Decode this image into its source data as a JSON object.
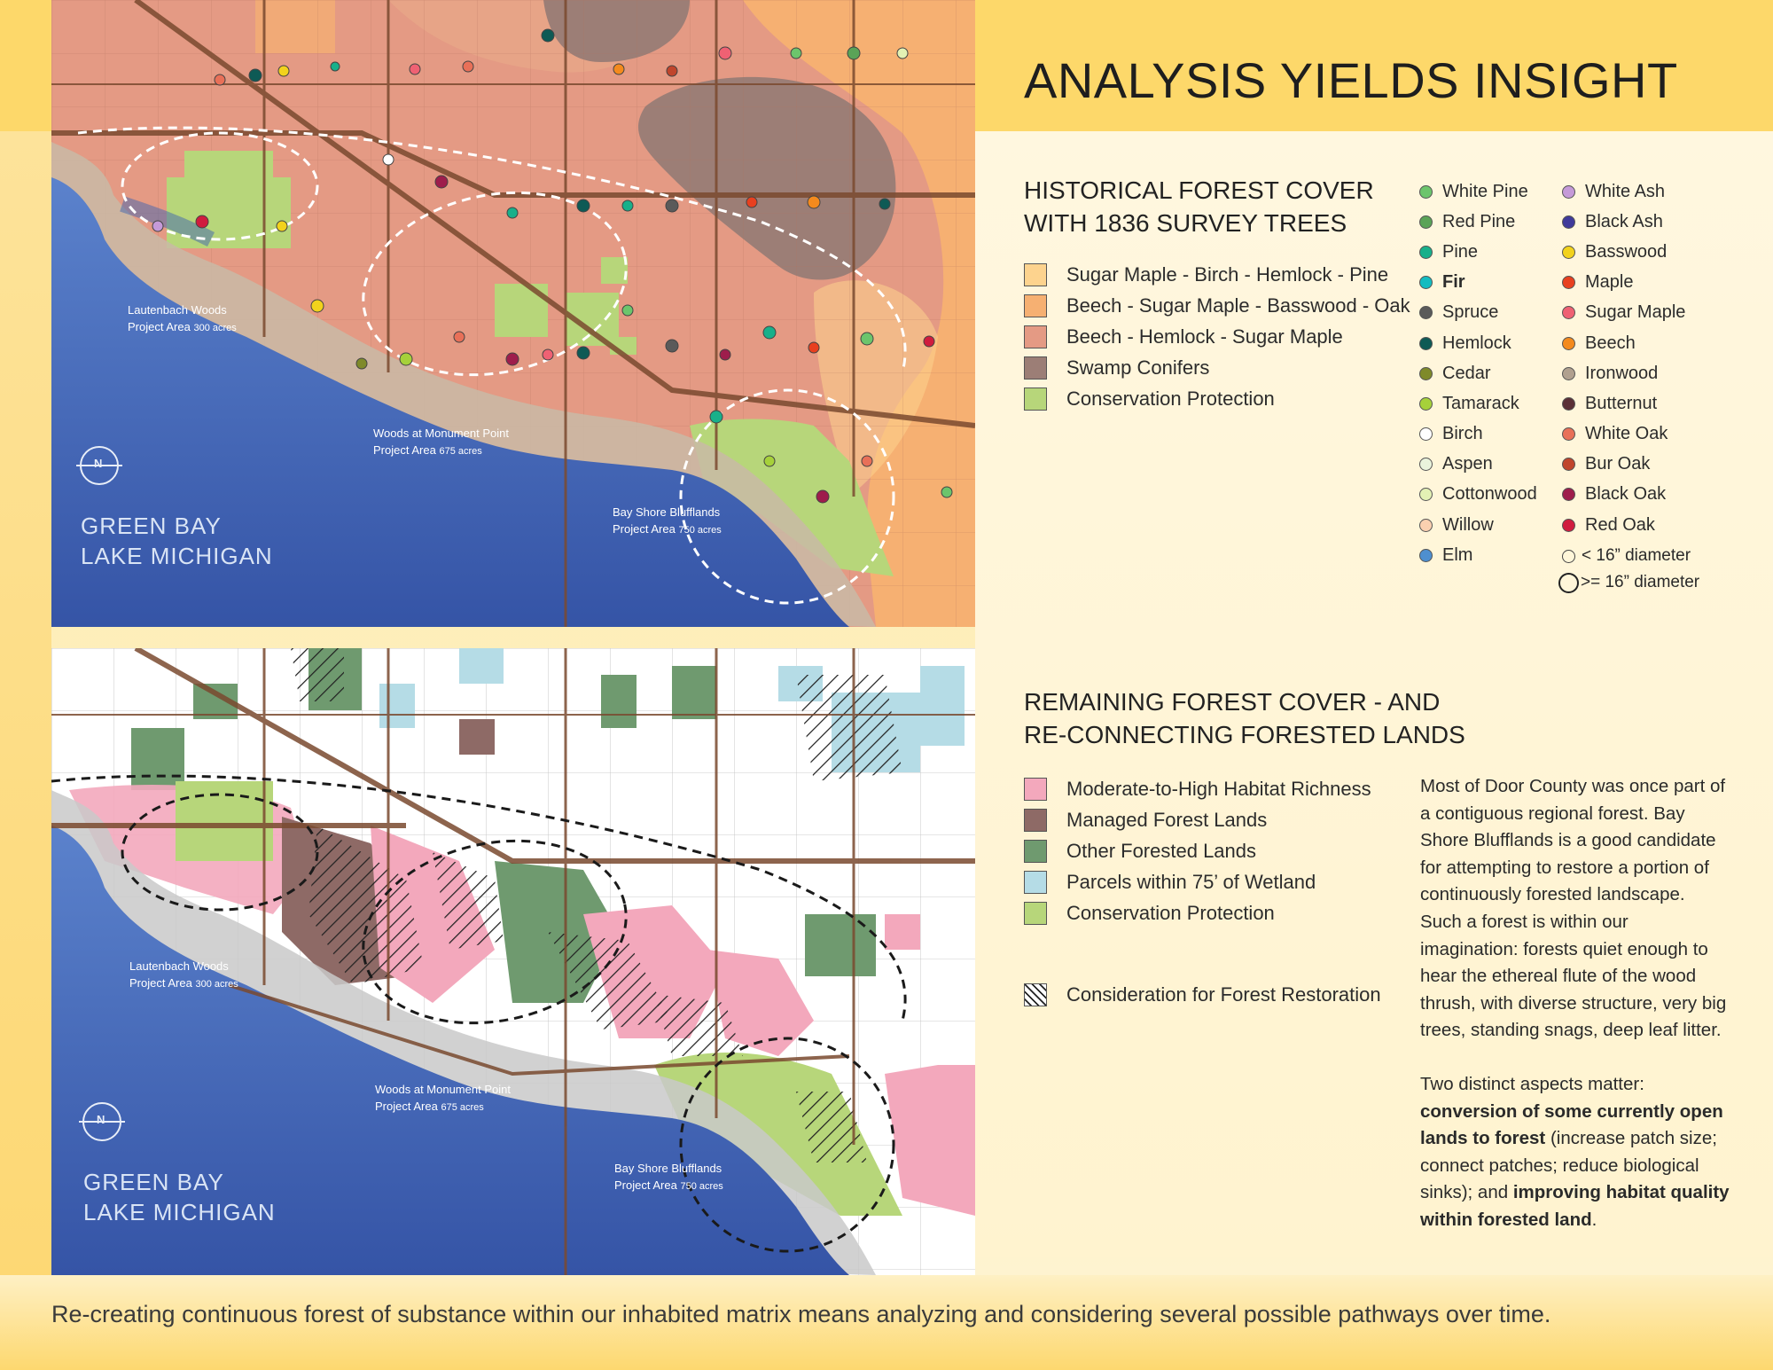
{
  "title": "ANALYSIS YIELDS INSIGHT",
  "section1": {
    "heading_line1": "HISTORICAL FOREST COVER",
    "heading_line2": "WITH 1836 SURVEY TREES",
    "legend": [
      {
        "label": "Sugar Maple - Birch - Hemlock - Pine",
        "color": "#fdd38e"
      },
      {
        "label": "Beech - Sugar Maple - Basswood - Oak",
        "color": "#f6b072"
      },
      {
        "label": "Beech - Hemlock - Sugar Maple",
        "color": "#e49a84"
      },
      {
        "label": "Swamp Conifers",
        "color": "#9c7e76"
      },
      {
        "label": "Conservation Protection",
        "color": "#b7d67a"
      }
    ],
    "survey_trees_col1": [
      {
        "label": "White Pine",
        "color": "#6cc56c"
      },
      {
        "label": "Red Pine",
        "color": "#5aa357"
      },
      {
        "label": "Pine",
        "color": "#18b08a"
      },
      {
        "label": "Fir",
        "color": "#14bcc0",
        "bold": true
      },
      {
        "label": "Spruce",
        "color": "#5a5a5a"
      },
      {
        "label": "Hemlock",
        "color": "#0e5a55"
      },
      {
        "label": "Cedar",
        "color": "#7f8a2a"
      },
      {
        "label": "Tamarack",
        "color": "#a6d13a"
      },
      {
        "label": "Birch",
        "color": "#ffffff"
      },
      {
        "label": "Aspen",
        "color": "#eaf4dc"
      },
      {
        "label": "Cottonwood",
        "color": "#e3f1b4"
      },
      {
        "label": "Willow",
        "color": "#fbd0b0"
      },
      {
        "label": "Elm",
        "color": "#4e8fcf"
      }
    ],
    "survey_trees_col2": [
      {
        "label": "White Ash",
        "color": "#c59ad8"
      },
      {
        "label": "Black Ash",
        "color": "#3f3a9a"
      },
      {
        "label": "Basswood",
        "color": "#f2d21c"
      },
      {
        "label": "Maple",
        "color": "#e8401f"
      },
      {
        "label": "Sugar Maple",
        "color": "#ef6173"
      },
      {
        "label": "Beech",
        "color": "#f48a1d"
      },
      {
        "label": "Ironwood",
        "color": "#b0a08f"
      },
      {
        "label": "Butternut",
        "color": "#5a2f36"
      },
      {
        "label": "White Oak",
        "color": "#e87058"
      },
      {
        "label": "Bur Oak",
        "color": "#c0452c"
      },
      {
        "label": "Black Oak",
        "color": "#9e1d4c"
      },
      {
        "label": "Red Oak",
        "color": "#d01c3e"
      }
    ],
    "diameter_small": "< 16” diameter",
    "diameter_large": ">= 16” diameter"
  },
  "section2": {
    "heading_line1": "REMAINING FOREST COVER - AND",
    "heading_line2": "RE-CONNECTING FORESTED LANDS",
    "legend": [
      {
        "label": "Moderate-to-High Habitat Richness",
        "color": "#f3a8bc"
      },
      {
        "label": "Managed Forest Lands",
        "color": "#8e6a66"
      },
      {
        "label": "Other Forested Lands",
        "color": "#6f9a6f"
      },
      {
        "label": "Parcels within 75’ of Wetland",
        "color": "#b5dce6"
      },
      {
        "label": "Conservation Protection",
        "color": "#b7d67a"
      }
    ],
    "restoration_label": "Consideration for Forest Restoration"
  },
  "paragraph1": "Most of Door County was once part of a contiguous regional forest. Bay Shore Blufflands is a good candidate for attempting to restore a portion of continuously forested landscape. Such a forest is within our imagination: forests quiet enough to hear the ethereal flute of the wood thrush, with diverse structure, very big trees, standing snags, deep leaf litter.",
  "paragraph2_intro": "Two distinct aspects matter: ",
  "paragraph2_bold1": "conversion of some currently open lands to forest",
  "paragraph2_mid": " (increase patch size; connect patches; reduce biological sinks); and ",
  "paragraph2_bold2": "improving habitat quality within forested land",
  "paragraph2_end": ".",
  "caption": "Re-creating continuous forest of substance within our inhabited matrix means analyzing and considering several possible pathways over time.",
  "map_labels": {
    "lautenbach_name": "Lautenbach Woods",
    "lautenbach_area": "Project Area",
    "lautenbach_acres": "300 acres",
    "monument_name": "Woods at Monument Point",
    "monument_area": "Project Area",
    "monument_acres": "675 acres",
    "bayshore_name": "Bay Shore Blufflands",
    "bayshore_area": "Project Area",
    "bayshore_acres": "750 acres",
    "water_line1": "GREEN BAY",
    "water_line2": "LAKE MICHIGAN",
    "north_letter": "N"
  }
}
